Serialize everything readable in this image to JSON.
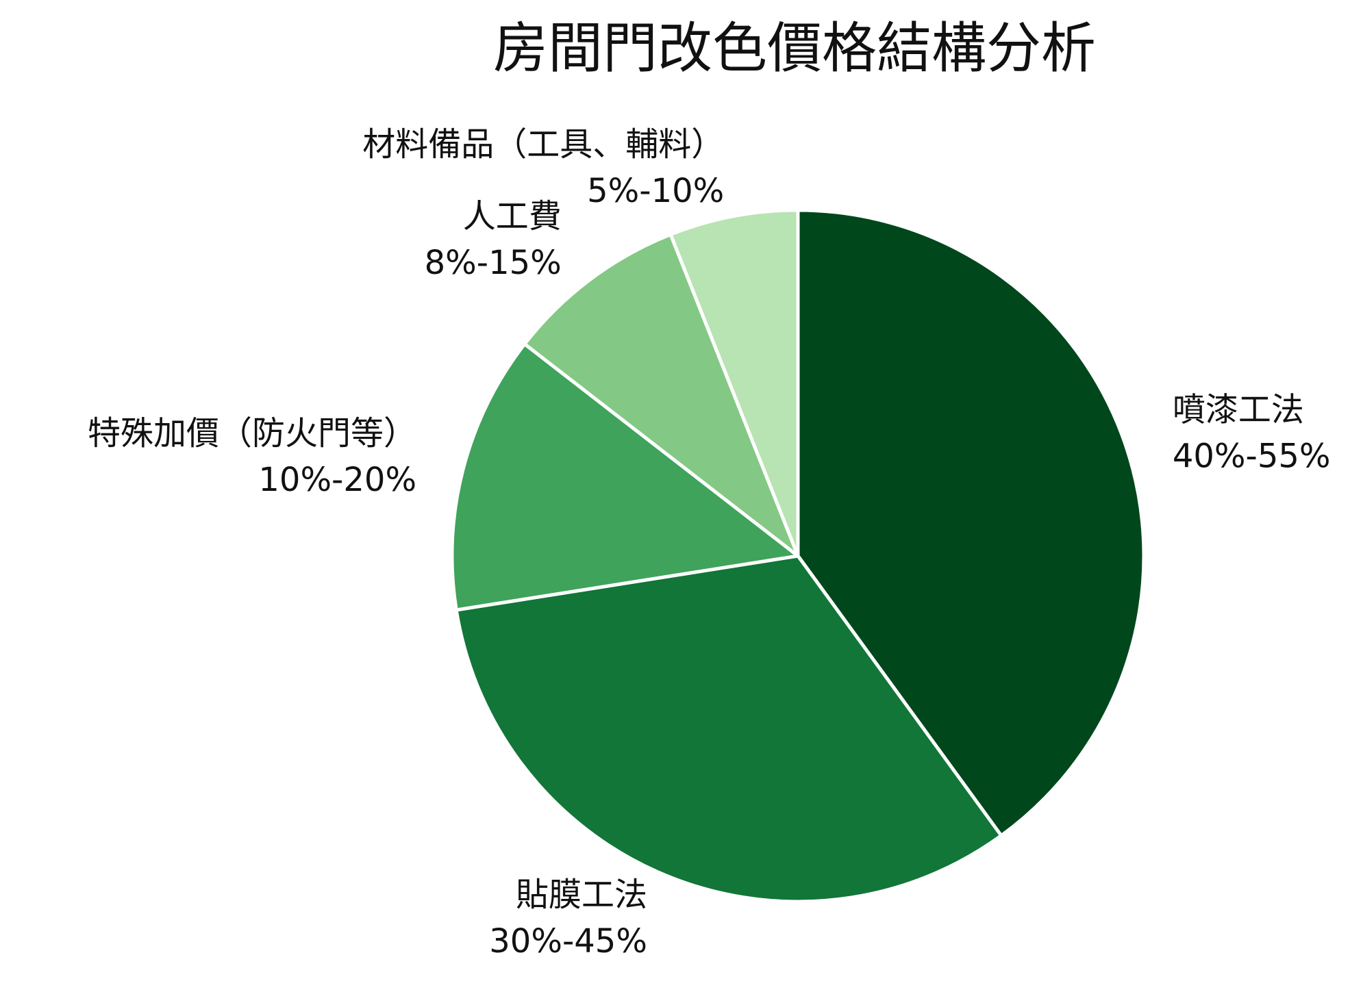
{
  "chart_data": {
    "type": "pie",
    "title": "房間門改色價格結構分析",
    "start_angle_deg": 0,
    "direction": "clockwise",
    "slices": [
      {
        "label": "噴漆工法",
        "range_text": "40%-55%",
        "value": 40.0,
        "color": "#00471c"
      },
      {
        "label": "貼膜工法",
        "range_text": "30%-45%",
        "value": 32.5,
        "color": "#117638"
      },
      {
        "label": "特殊加價（防火門等）",
        "range_text": "10%-20%",
        "value": 13.0,
        "color": "#3fa35b"
      },
      {
        "label": "人工費",
        "range_text": "8%-15%",
        "value": 8.5,
        "color": "#83c985"
      },
      {
        "label": "材料備品（工具、輔料）",
        "range_text": "5%-10%",
        "value": 6.0,
        "color": "#b8e3b2"
      }
    ],
    "slice_border_color": "#ffffff"
  }
}
